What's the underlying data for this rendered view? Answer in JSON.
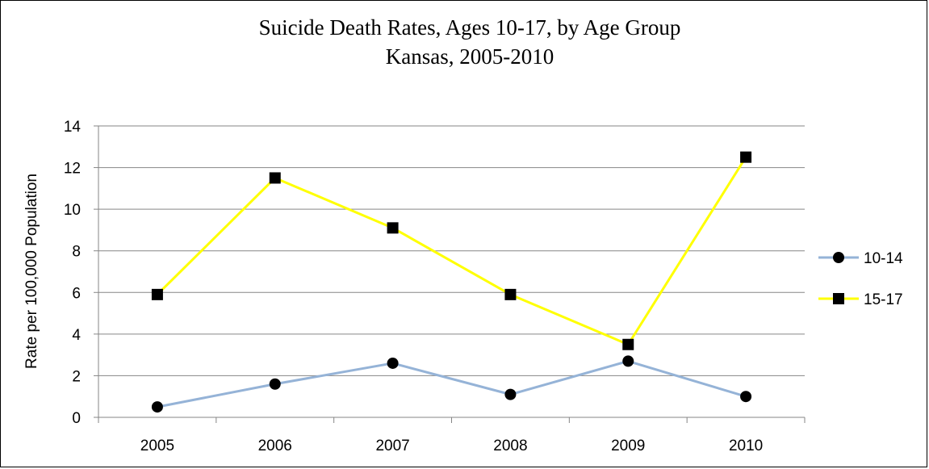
{
  "chart_data": {
    "type": "line",
    "title": "Suicide Death Rates, Ages 10-17, by Age Group",
    "subtitle": "Kansas, 2005-2010",
    "xlabel": "",
    "ylabel": "Rate per 100,000 Population",
    "categories": [
      "2005",
      "2006",
      "2007",
      "2008",
      "2009",
      "2010"
    ],
    "ylim": [
      0,
      14
    ],
    "yticks": [
      0,
      2,
      4,
      6,
      8,
      10,
      12,
      14
    ],
    "grid": true,
    "legend_position": "right",
    "series": [
      {
        "name": "10-14",
        "values": [
          0.5,
          1.6,
          2.6,
          1.1,
          2.7,
          1.0
        ],
        "color": "#95B3D7",
        "marker": "circle"
      },
      {
        "name": "15-17",
        "values": [
          5.9,
          11.5,
          9.1,
          5.9,
          3.5,
          12.5
        ],
        "color": "#FFFF00",
        "marker": "square"
      }
    ]
  }
}
